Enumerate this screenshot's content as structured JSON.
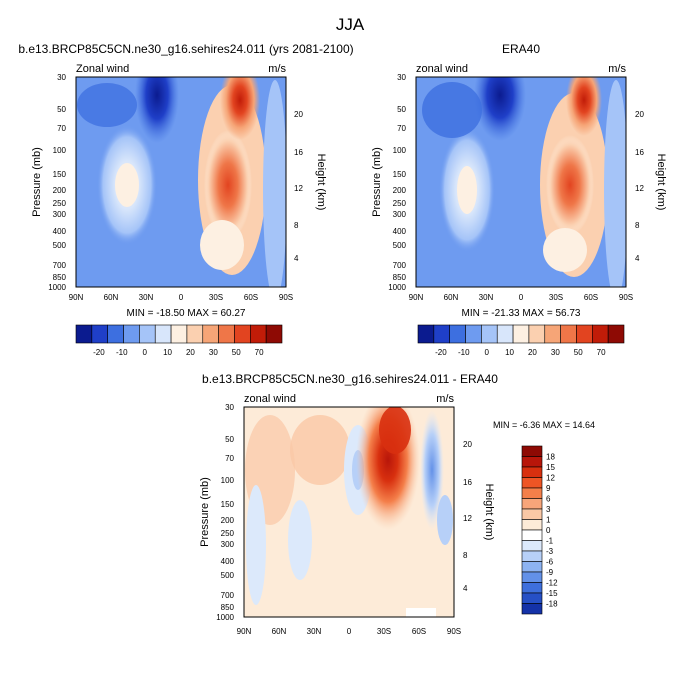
{
  "figure_title": "JJA",
  "chart_data": [
    {
      "type": "heatmap",
      "kind": "latitude-pressure contour",
      "title": "b.e13.BRCP85C5CN.ne30_g16.sehires24.011 (yrs 2081-2100)",
      "left_string": "Zonal wind",
      "right_string": "m/s",
      "xlabel": "",
      "ylabel": "Pressure (mb)",
      "y2label": "Height (km)",
      "x_ticks": [
        "90N",
        "60N",
        "30N",
        "0",
        "30S",
        "60S",
        "90S"
      ],
      "y_ticks": [
        "30",
        "50",
        "70",
        "100",
        "150",
        "200",
        "250",
        "300",
        "400",
        "500",
        "700",
        "850",
        "1000"
      ],
      "y2_ticks": [
        "20",
        "16",
        "12",
        "8",
        "4"
      ],
      "stats": "MIN = -18.50  MAX =  60.27",
      "min": -18.5,
      "max": 60.27,
      "features": [
        {
          "lat": 20,
          "p": 40,
          "value": -18
        },
        {
          "lat": 50,
          "p": 180,
          "value": -9
        },
        {
          "lat": -45,
          "p": 35,
          "value": 55
        },
        {
          "lat": -30,
          "p": 180,
          "value": 38
        }
      ]
    },
    {
      "type": "heatmap",
      "kind": "latitude-pressure contour",
      "title": "ERA40",
      "left_string": "zonal wind",
      "right_string": "m/s",
      "xlabel": "",
      "ylabel": "Pressure (mb)",
      "y2label": "Height (km)",
      "x_ticks": [
        "90N",
        "60N",
        "30N",
        "0",
        "30S",
        "60S",
        "90S"
      ],
      "y_ticks": [
        "30",
        "50",
        "70",
        "100",
        "150",
        "200",
        "250",
        "300",
        "400",
        "500",
        "700",
        "850",
        "1000"
      ],
      "y2_ticks": [
        "20",
        "16",
        "12",
        "8",
        "4"
      ],
      "stats": "MIN = -21.33  MAX =  56.73",
      "min": -21.33,
      "max": 56.73,
      "features": [
        {
          "lat": 20,
          "p": 35,
          "value": -20
        },
        {
          "lat": 45,
          "p": 180,
          "value": -12
        },
        {
          "lat": -45,
          "p": 35,
          "value": 50
        },
        {
          "lat": -30,
          "p": 180,
          "value": 40
        }
      ]
    },
    {
      "type": "heatmap",
      "kind": "latitude-pressure contour (difference)",
      "title": "b.e13.BRCP85C5CN.ne30_g16.sehires24.011 - ERA40",
      "left_string": "zonal wind",
      "right_string": "m/s",
      "xlabel": "",
      "ylabel": "Pressure (mb)",
      "y2label": "Height (km)",
      "x_ticks": [
        "90N",
        "60N",
        "30N",
        "0",
        "30S",
        "60S",
        "90S"
      ],
      "y_ticks": [
        "30",
        "50",
        "70",
        "100",
        "150",
        "200",
        "250",
        "300",
        "400",
        "500",
        "700",
        "850",
        "1000"
      ],
      "y2_ticks": [
        "20",
        "16",
        "12",
        "8",
        "4"
      ],
      "stats": "MIN = -6.36  MAX =  14.64",
      "min": -6.36,
      "max": 14.64,
      "features": [
        {
          "lat": -30,
          "p": 80,
          "value": 13
        },
        {
          "lat": -40,
          "p": 40,
          "value": 9
        },
        {
          "lat": 0,
          "p": 60,
          "value": -4
        },
        {
          "lat": -70,
          "p": 100,
          "value": -3
        }
      ]
    }
  ],
  "colorbars": [
    {
      "orientation": "horizontal",
      "labels": [
        "-20",
        "-10",
        "0",
        "10",
        "20",
        "30",
        "50",
        "70"
      ],
      "colors": [
        "#0b1b8f",
        "#1f3fc8",
        "#3d6fe0",
        "#6e9bf0",
        "#a5c4f8",
        "#d8e6fb",
        "#fdf0e2",
        "#fbd0b0",
        "#f6a577",
        "#ef7648",
        "#e24420",
        "#c11c08",
        "#8e0a04"
      ]
    },
    {
      "orientation": "horizontal",
      "labels": [
        "-20",
        "-10",
        "0",
        "10",
        "20",
        "30",
        "50",
        "70"
      ],
      "colors": [
        "#0b1b8f",
        "#1f3fc8",
        "#3d6fe0",
        "#6e9bf0",
        "#a5c4f8",
        "#d8e6fb",
        "#fdf0e2",
        "#fbd0b0",
        "#f6a577",
        "#ef7648",
        "#e24420",
        "#c11c08",
        "#8e0a04"
      ]
    },
    {
      "orientation": "vertical",
      "labels": [
        "18",
        "15",
        "12",
        "9",
        "6",
        "3",
        "1",
        "0",
        "-1",
        "-3",
        "-6",
        "-9",
        "-12",
        "-15",
        "-18"
      ],
      "colors": [
        "#8e0a04",
        "#b8160a",
        "#d8300f",
        "#ee5525",
        "#f47f4a",
        "#f7a57a",
        "#fac8a6",
        "#fdebd8",
        "#ffffff",
        "#dce9fb",
        "#b7d0f8",
        "#8db3f2",
        "#6391e8",
        "#3e6fdc",
        "#2650c6",
        "#1432a8"
      ]
    }
  ]
}
